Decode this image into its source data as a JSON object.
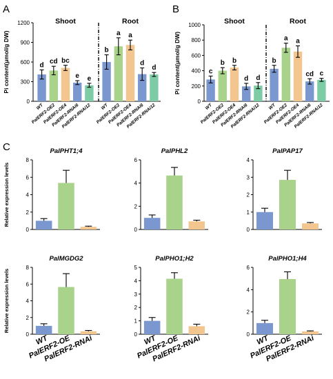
{
  "colors": {
    "WT": "#7b97cf",
    "OE2": "#a9d28a",
    "OE4": "#f3c58f",
    "RNAi6": "#7b97cf",
    "RNAi12": "#7dcca6",
    "OE": "#a9d28a",
    "RNAi": "#f3c58f"
  },
  "chart_data": [
    {
      "panel": "A",
      "type": "bar",
      "ylabel": "Pi content(μmol/g DW)",
      "ylim": [
        0,
        1200
      ],
      "yticks": [
        "0",
        "300",
        "600",
        "900",
        "1200"
      ],
      "categories": [
        "WT",
        "PalERF2-OE2",
        "PalERF2-OE4",
        "PalERF2-RNAi6",
        "PalERF2-RNAi12"
      ],
      "groups": [
        {
          "title": "Shoot",
          "values": [
            410,
            470,
            510,
            285,
            245
          ],
          "errors": [
            70,
            65,
            40,
            30,
            30
          ],
          "letters": [
            "d",
            "cd",
            "bc",
            "e",
            "e"
          ]
        },
        {
          "title": "Root",
          "values": [
            600,
            840,
            860,
            415,
            410
          ],
          "errors": [
            110,
            130,
            75,
            95,
            30
          ],
          "letters": [
            "b",
            "a",
            "a",
            "d",
            "d"
          ]
        }
      ]
    },
    {
      "panel": "B",
      "type": "bar",
      "ylabel": "Pi content(μmol/g DW)",
      "ylim": [
        0,
        1000
      ],
      "yticks": [
        "0",
        "200",
        "400",
        "600",
        "800",
        "1000"
      ],
      "categories": [
        "WT",
        "PalERF2-OE2",
        "PalERF2-OE4",
        "PalERF2-RNAi6",
        "PalERF2-RNAi12"
      ],
      "groups": [
        {
          "title": "Shoot",
          "values": [
            285,
            400,
            440,
            195,
            205
          ],
          "errors": [
            45,
            40,
            30,
            40,
            40
          ],
          "letters": [
            "c",
            "b",
            "b",
            "d",
            "d"
          ]
        },
        {
          "title": "Root",
          "values": [
            425,
            700,
            650,
            260,
            280
          ],
          "errors": [
            45,
            60,
            75,
            35,
            20
          ],
          "letters": [
            "b",
            "a",
            "a",
            "cd",
            "c"
          ]
        }
      ]
    },
    {
      "panel": "C",
      "type": "bar",
      "ylabel": "Relative expression levels",
      "categories": [
        "WT",
        "PalERF2-OE",
        "PalERF2-RNAi"
      ],
      "subplots": [
        {
          "gene": "PalPHT1;4",
          "ylim": [
            0,
            8
          ],
          "yticks": [
            "0",
            "2",
            "4",
            "6",
            "8"
          ],
          "values": [
            1.0,
            5.35,
            0.3
          ],
          "errors": [
            0.25,
            1.45,
            0.08
          ]
        },
        {
          "gene": "PalPHL2",
          "ylim": [
            0,
            6
          ],
          "yticks": [
            "0",
            "2",
            "4",
            "6"
          ],
          "values": [
            1.0,
            4.65,
            0.7
          ],
          "errors": [
            0.25,
            0.7,
            0.1
          ]
        },
        {
          "gene": "PalPAP17",
          "ylim": [
            0,
            4
          ],
          "yticks": [
            "0",
            "1",
            "2",
            "3",
            "4"
          ],
          "values": [
            1.0,
            2.85,
            0.35
          ],
          "errors": [
            0.22,
            0.55,
            0.05
          ]
        },
        {
          "gene": "PalMGDG2",
          "ylim": [
            0,
            8
          ],
          "yticks": [
            "0",
            "2",
            "4",
            "6",
            "8"
          ],
          "values": [
            1.0,
            5.65,
            0.35
          ],
          "errors": [
            0.25,
            1.6,
            0.1
          ]
        },
        {
          "gene": "PalPHO1;H2",
          "ylim": [
            0,
            5
          ],
          "yticks": [
            "0",
            "1",
            "2",
            "3",
            "4",
            "5"
          ],
          "values": [
            1.0,
            4.15,
            0.6
          ],
          "errors": [
            0.25,
            0.45,
            0.15
          ]
        },
        {
          "gene": "PalPHO1;H4",
          "ylim": [
            0,
            6
          ],
          "yticks": [
            "0",
            "2",
            "4",
            "6"
          ],
          "values": [
            1.0,
            4.95,
            0.25
          ],
          "errors": [
            0.25,
            0.65,
            0.05
          ]
        }
      ]
    }
  ]
}
